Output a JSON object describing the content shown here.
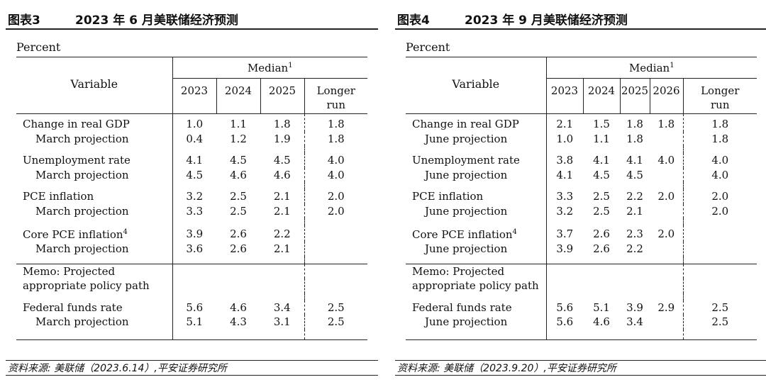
{
  "figures": [
    {
      "num": "图表3",
      "title": "2023 年 6 月美联储经济预测",
      "unit": "Percent",
      "header": {
        "variable": "Variable",
        "median": "Median",
        "median_sup": "1",
        "years": [
          "2023",
          "2024",
          "2025"
        ],
        "longer_line1": "Longer",
        "longer_line2": "run"
      },
      "rows": {
        "gdp": {
          "label": "Change in real GDP",
          "vals": [
            "1.0",
            "1.1",
            "1.8"
          ],
          "longer": "1.8"
        },
        "gdp_p": {
          "label": "March projection",
          "vals": [
            "0.4",
            "1.2",
            "1.9"
          ],
          "longer": "1.8"
        },
        "unemp": {
          "label": "Unemployment rate",
          "vals": [
            "4.1",
            "4.5",
            "4.5"
          ],
          "longer": "4.0"
        },
        "unemp_p": {
          "label": "March projection",
          "vals": [
            "4.5",
            "4.6",
            "4.6"
          ],
          "longer": "4.0"
        },
        "pce": {
          "label": "PCE inflation",
          "vals": [
            "3.2",
            "2.5",
            "2.1"
          ],
          "longer": "2.0"
        },
        "pce_p": {
          "label": "March projection",
          "vals": [
            "3.3",
            "2.5",
            "2.1"
          ],
          "longer": "2.0"
        },
        "core": {
          "label": "Core PCE inflation",
          "sup": "4",
          "vals": [
            "3.9",
            "2.6",
            "2.2"
          ],
          "longer": ""
        },
        "core_p": {
          "label": "March projection",
          "vals": [
            "3.6",
            "2.6",
            "2.1"
          ],
          "longer": ""
        },
        "memo1": {
          "label": "Memo: Projected"
        },
        "memo2": {
          "label": "appropriate policy path"
        },
        "ffr": {
          "label": "Federal funds rate",
          "vals": [
            "5.6",
            "4.6",
            "3.4"
          ],
          "longer": "2.5"
        },
        "ffr_p": {
          "label": "March projection",
          "vals": [
            "5.1",
            "4.3",
            "3.1"
          ],
          "longer": "2.5"
        }
      },
      "source": "资料来源: 美联储（2023.6.14）,平安证券研究所"
    },
    {
      "num": "图表4",
      "title": "2023 年 9 月美联储经济预测",
      "unit": "Percent",
      "header": {
        "variable": "Variable",
        "median": "Median",
        "median_sup": "1",
        "years": [
          "2023",
          "2024",
          "2025",
          "2026"
        ],
        "longer_line1": "Longer",
        "longer_line2": "run"
      },
      "rows": {
        "gdp": {
          "label": "Change in real GDP",
          "vals": [
            "2.1",
            "1.5",
            "1.8",
            "1.8"
          ],
          "longer": "1.8"
        },
        "gdp_p": {
          "label": "June projection",
          "vals": [
            "1.0",
            "1.1",
            "1.8",
            ""
          ],
          "longer": "1.8"
        },
        "unemp": {
          "label": "Unemployment rate",
          "vals": [
            "3.8",
            "4.1",
            "4.1",
            "4.0"
          ],
          "longer": "4.0"
        },
        "unemp_p": {
          "label": "June projection",
          "vals": [
            "4.1",
            "4.5",
            "4.5",
            ""
          ],
          "longer": "4.0"
        },
        "pce": {
          "label": "PCE inflation",
          "vals": [
            "3.3",
            "2.5",
            "2.2",
            "2.0"
          ],
          "longer": "2.0"
        },
        "pce_p": {
          "label": "June projection",
          "vals": [
            "3.2",
            "2.5",
            "2.1",
            ""
          ],
          "longer": "2.0"
        },
        "core": {
          "label": "Core PCE inflation",
          "sup": "4",
          "vals": [
            "3.7",
            "2.6",
            "2.3",
            "2.0"
          ],
          "longer": ""
        },
        "core_p": {
          "label": "June projection",
          "vals": [
            "3.9",
            "2.6",
            "2.2",
            ""
          ],
          "longer": ""
        },
        "memo1": {
          "label": "Memo: Projected"
        },
        "memo2": {
          "label": "appropriate policy path"
        },
        "ffr": {
          "label": "Federal funds rate",
          "vals": [
            "5.6",
            "5.1",
            "3.9",
            "2.9"
          ],
          "longer": "2.5"
        },
        "ffr_p": {
          "label": "June projection",
          "vals": [
            "5.6",
            "4.6",
            "3.4",
            ""
          ],
          "longer": "2.5"
        }
      },
      "source": "资料来源: 美联储（2023.9.20）,平安证券研究所"
    }
  ]
}
